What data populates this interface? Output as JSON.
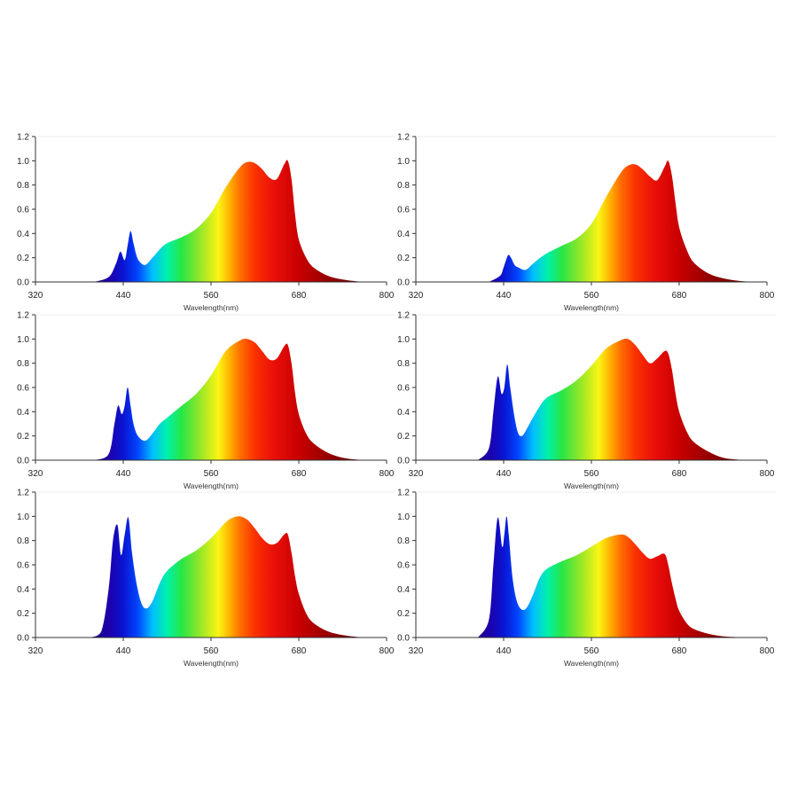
{
  "chart_data": [
    {
      "type": "area",
      "xlabel": "Wavelength(nm)",
      "xlim": [
        320,
        800
      ],
      "ylim": [
        0,
        1.2
      ],
      "xticks": [
        320,
        440,
        560,
        680,
        800
      ],
      "yticks": [
        0.0,
        0.2,
        0.4,
        0.6,
        0.8,
        1.0,
        1.2
      ],
      "xtick_labels": [
        "320",
        "440",
        "560",
        "680",
        "800"
      ],
      "ytick_labels": [
        "0.0",
        "0.2",
        "0.4",
        "0.6",
        "0.8",
        "1.0",
        "1.2"
      ],
      "grid": false,
      "fill": "visible-spectrum gradient",
      "series": [
        {
          "x": [
            400,
            420,
            430,
            436,
            442,
            446,
            450,
            454,
            458,
            462,
            470,
            480,
            490,
            500,
            520,
            540,
            560,
            580,
            600,
            610,
            620,
            630,
            640,
            650,
            660,
            665,
            670,
            675,
            680,
            690,
            700,
            720,
            740,
            760,
            780
          ],
          "values": [
            0,
            0.04,
            0.15,
            0.25,
            0.18,
            0.3,
            0.42,
            0.32,
            0.22,
            0.17,
            0.14,
            0.2,
            0.27,
            0.32,
            0.37,
            0.44,
            0.57,
            0.78,
            0.95,
            0.99,
            0.98,
            0.93,
            0.86,
            0.85,
            0.97,
            1.0,
            0.85,
            0.55,
            0.35,
            0.2,
            0.12,
            0.05,
            0.02,
            0.005,
            0
          ]
        }
      ]
    },
    {
      "type": "area",
      "xlabel": "Wavelength(nm)",
      "xlim": [
        320,
        800
      ],
      "ylim": [
        0,
        1.2
      ],
      "xticks": [
        320,
        440,
        560,
        680,
        800
      ],
      "yticks": [
        0.0,
        0.2,
        0.4,
        0.6,
        0.8,
        1.0,
        1.2
      ],
      "xtick_labels": [
        "320",
        "440",
        "560",
        "680",
        "800"
      ],
      "ytick_labels": [
        "0.0",
        "0.2",
        "0.4",
        "0.6",
        "0.8",
        "1.0",
        "1.2"
      ],
      "grid": false,
      "fill": "visible-spectrum gradient",
      "series": [
        {
          "x": [
            420,
            435,
            440,
            446,
            450,
            455,
            460,
            470,
            480,
            490,
            500,
            520,
            540,
            560,
            580,
            600,
            610,
            620,
            630,
            640,
            650,
            660,
            665,
            670,
            675,
            680,
            690,
            700,
            720,
            740,
            760,
            780
          ],
          "values": [
            0,
            0.05,
            0.12,
            0.22,
            0.2,
            0.14,
            0.12,
            0.1,
            0.15,
            0.2,
            0.24,
            0.3,
            0.36,
            0.48,
            0.7,
            0.9,
            0.96,
            0.97,
            0.93,
            0.87,
            0.84,
            0.95,
            1.0,
            0.88,
            0.65,
            0.45,
            0.27,
            0.16,
            0.07,
            0.03,
            0.01,
            0
          ]
        }
      ]
    },
    {
      "type": "area",
      "xlabel": "Wavelength(nm)",
      "xlim": [
        320,
        800
      ],
      "ylim": [
        0,
        1.2
      ],
      "xticks": [
        320,
        440,
        560,
        680,
        800
      ],
      "yticks": [
        0.0,
        0.2,
        0.4,
        0.6,
        0.8,
        1.0,
        1.2
      ],
      "xtick_labels": [
        "320",
        "440",
        "560",
        "680",
        "800"
      ],
      "ytick_labels": [
        "0.0",
        "0.2",
        "0.4",
        "0.6",
        "0.8",
        "1.0",
        "1.2"
      ],
      "grid": false,
      "fill": "visible-spectrum gradient",
      "series": [
        {
          "x": [
            400,
            420,
            428,
            433,
            438,
            442,
            446,
            450,
            454,
            460,
            470,
            480,
            490,
            500,
            520,
            540,
            560,
            580,
            600,
            610,
            620,
            630,
            640,
            650,
            660,
            665,
            670,
            675,
            680,
            690,
            700,
            720,
            740,
            760,
            780
          ],
          "values": [
            0,
            0.05,
            0.3,
            0.45,
            0.38,
            0.45,
            0.6,
            0.45,
            0.3,
            0.2,
            0.16,
            0.22,
            0.3,
            0.35,
            0.45,
            0.55,
            0.7,
            0.9,
            0.99,
            1.0,
            0.97,
            0.9,
            0.83,
            0.84,
            0.94,
            0.95,
            0.8,
            0.55,
            0.38,
            0.22,
            0.14,
            0.06,
            0.02,
            0.005,
            0
          ]
        }
      ]
    },
    {
      "type": "area",
      "xlabel": "Wavelength(nm)",
      "xlim": [
        320,
        800
      ],
      "ylim": [
        0,
        1.2
      ],
      "xticks": [
        320,
        440,
        560,
        680,
        800
      ],
      "yticks": [
        0.0,
        0.2,
        0.4,
        0.6,
        0.8,
        1.0,
        1.2
      ],
      "xtick_labels": [
        "320",
        "440",
        "560",
        "680",
        "800"
      ],
      "ytick_labels": [
        "0.0",
        "0.2",
        "0.4",
        "0.6",
        "0.8",
        "1.0",
        "1.2"
      ],
      "grid": false,
      "fill": "visible-spectrum gradient",
      "series": [
        {
          "x": [
            405,
            420,
            426,
            432,
            437,
            441,
            445,
            449,
            455,
            460,
            465,
            470,
            480,
            490,
            500,
            520,
            540,
            560,
            580,
            600,
            610,
            620,
            630,
            640,
            650,
            660,
            665,
            670,
            675,
            680,
            690,
            700,
            720,
            740,
            760,
            780
          ],
          "values": [
            0,
            0.1,
            0.4,
            0.69,
            0.55,
            0.6,
            0.79,
            0.6,
            0.35,
            0.22,
            0.2,
            0.24,
            0.35,
            0.45,
            0.52,
            0.58,
            0.66,
            0.78,
            0.92,
            0.99,
            1.0,
            0.95,
            0.87,
            0.8,
            0.84,
            0.9,
            0.88,
            0.75,
            0.55,
            0.4,
            0.24,
            0.15,
            0.07,
            0.02,
            0.005,
            0
          ]
        }
      ]
    },
    {
      "type": "area",
      "xlabel": "Wavelength(nm)",
      "xlim": [
        320,
        800
      ],
      "ylim": [
        0,
        1.2
      ],
      "xticks": [
        320,
        440,
        560,
        680,
        800
      ],
      "yticks": [
        0.0,
        0.2,
        0.4,
        0.6,
        0.8,
        1.0,
        1.2
      ],
      "xtick_labels": [
        "320",
        "440",
        "560",
        "680",
        "800"
      ],
      "ytick_labels": [
        "0.0",
        "0.2",
        "0.4",
        "0.6",
        "0.8",
        "1.0",
        "1.2"
      ],
      "grid": false,
      "fill": "visible-spectrum gradient",
      "series": [
        {
          "x": [
            395,
            410,
            420,
            426,
            432,
            437,
            442,
            447,
            452,
            458,
            465,
            472,
            480,
            490,
            500,
            520,
            540,
            560,
            580,
            590,
            600,
            610,
            620,
            630,
            640,
            650,
            660,
            665,
            670,
            675,
            680,
            690,
            700,
            720,
            740,
            760,
            780
          ],
          "values": [
            0,
            0.05,
            0.4,
            0.8,
            0.93,
            0.68,
            0.85,
            0.99,
            0.7,
            0.45,
            0.28,
            0.24,
            0.3,
            0.45,
            0.55,
            0.65,
            0.72,
            0.82,
            0.95,
            0.99,
            1.0,
            0.97,
            0.9,
            0.82,
            0.77,
            0.78,
            0.85,
            0.85,
            0.7,
            0.5,
            0.36,
            0.2,
            0.12,
            0.05,
            0.02,
            0.005,
            0
          ]
        }
      ]
    },
    {
      "type": "area",
      "xlabel": "Wavelength(nm)",
      "xlim": [
        320,
        800
      ],
      "ylim": [
        0,
        1.2
      ],
      "xticks": [
        320,
        440,
        560,
        680,
        800
      ],
      "yticks": [
        0.0,
        0.2,
        0.4,
        0.6,
        0.8,
        1.0,
        1.2
      ],
      "xtick_labels": [
        "320",
        "440",
        "560",
        "680",
        "800"
      ],
      "ytick_labels": [
        "0.0",
        "0.2",
        "0.4",
        "0.6",
        "0.8",
        "1.0",
        "1.2"
      ],
      "grid": false,
      "fill": "visible-spectrum gradient",
      "series": [
        {
          "x": [
            405,
            420,
            426,
            432,
            438,
            441,
            444,
            447,
            452,
            458,
            465,
            472,
            480,
            490,
            500,
            520,
            540,
            560,
            580,
            600,
            610,
            620,
            630,
            640,
            650,
            660,
            665,
            670,
            675,
            680,
            690,
            700,
            720,
            740,
            760,
            780
          ],
          "values": [
            0,
            0.15,
            0.6,
            0.99,
            0.75,
            0.85,
            1.0,
            0.85,
            0.5,
            0.3,
            0.23,
            0.25,
            0.35,
            0.5,
            0.57,
            0.63,
            0.68,
            0.75,
            0.82,
            0.85,
            0.83,
            0.77,
            0.7,
            0.65,
            0.67,
            0.69,
            0.6,
            0.45,
            0.32,
            0.22,
            0.12,
            0.07,
            0.03,
            0.01,
            0.003,
            0
          ]
        }
      ]
    }
  ]
}
